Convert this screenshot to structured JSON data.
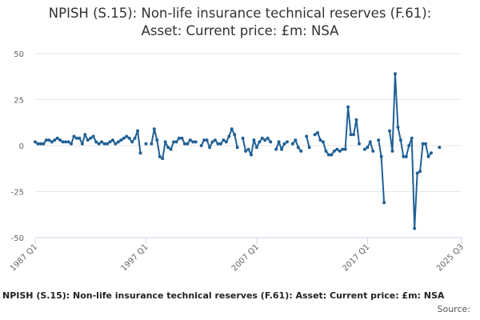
{
  "colors": {
    "series": "#206095",
    "gridline": "#e6e6e6",
    "axis": "#ccd6eb",
    "text": "#666666"
  },
  "chart_data": {
    "type": "line",
    "title_line1": "NPISH (S.15): Non-life insurance technical reserves (F.61):",
    "title_line2": "Asset: Current price: £m: NSA",
    "footer_title": "NPISH (S.15): Non-life insurance technical reserves (F.61): Asset: Current price: £m: NSA",
    "source_label": "Source:",
    "ylim": [
      -50,
      50
    ],
    "yticks": [
      50,
      25,
      0,
      -25,
      -50
    ],
    "xticks": [
      "1987 Q1",
      "1997 Q1",
      "2007 Q1",
      "2017 Q1",
      "2025 Q3"
    ],
    "x_start": "1987 Q1",
    "x_end": "2025 Q3",
    "series": [
      {
        "name": "NPISH (S.15): Non-life insurance technical reserves (F.61): Asset: Current price: £m: NSA",
        "values": [
          2,
          1,
          1,
          1,
          3,
          3,
          2,
          3,
          4,
          3,
          2,
          2,
          2,
          1,
          5,
          4,
          4,
          1,
          6,
          3,
          4,
          5,
          2,
          1,
          2,
          1,
          1,
          2,
          3,
          1,
          2,
          3,
          4,
          5,
          4,
          2,
          4,
          8,
          -4,
          null,
          1,
          null,
          1,
          9,
          3,
          -6,
          -7,
          2,
          -1,
          -2,
          2,
          2,
          4,
          4,
          1,
          1,
          3,
          2,
          2,
          null,
          0,
          3,
          3,
          -1,
          2,
          3,
          1,
          1,
          3,
          2,
          5,
          9,
          6,
          -1,
          null,
          4,
          -3,
          -2,
          -5,
          3,
          -1,
          2,
          4,
          3,
          4,
          2,
          null,
          -2,
          2,
          -2,
          1,
          2,
          null,
          1,
          3,
          -1,
          -3,
          null,
          5,
          -1,
          null,
          6,
          7,
          3,
          2,
          -3,
          -5,
          -5,
          -3,
          -2,
          -3,
          -2,
          -2,
          21,
          6,
          6,
          14,
          1,
          null,
          -2,
          -1,
          2,
          -3,
          null,
          3,
          -6,
          -31,
          null,
          8,
          -3,
          39,
          10,
          3,
          -6,
          -6,
          0,
          4,
          -45,
          -15,
          -14,
          1,
          1,
          -6,
          -4,
          null,
          null,
          -1
        ]
      }
    ]
  }
}
